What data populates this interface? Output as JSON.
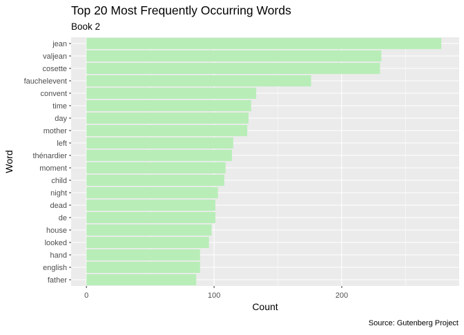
{
  "chart_data": {
    "type": "bar",
    "orientation": "horizontal",
    "title": "Top 20 Most Frequently Occurring Words",
    "subtitle": "Book 2",
    "xlabel": "Count",
    "ylabel": "Word",
    "caption": "Source: Gutenberg Project",
    "categories": [
      "jean",
      "valjean",
      "cosette",
      "fauchelevent",
      "convent",
      "time",
      "day",
      "mother",
      "left",
      "thénardier",
      "moment",
      "child",
      "night",
      "dead",
      "de",
      "house",
      "looked",
      "hand",
      "english",
      "father"
    ],
    "values": [
      278,
      231,
      230,
      176,
      133,
      129,
      127,
      126,
      115,
      114,
      109,
      108,
      103,
      101,
      101,
      98,
      96,
      89,
      89,
      86
    ],
    "xlim": [
      -12,
      292
    ],
    "xticks": [
      0,
      100,
      200
    ],
    "grid": true,
    "legend": "none",
    "colors": {
      "bar_fill": "#b8edb8",
      "panel_bg": "#ebebeb",
      "grid": "#ffffff",
      "text": "#000000",
      "tick_text": "#4d4d4d"
    }
  }
}
